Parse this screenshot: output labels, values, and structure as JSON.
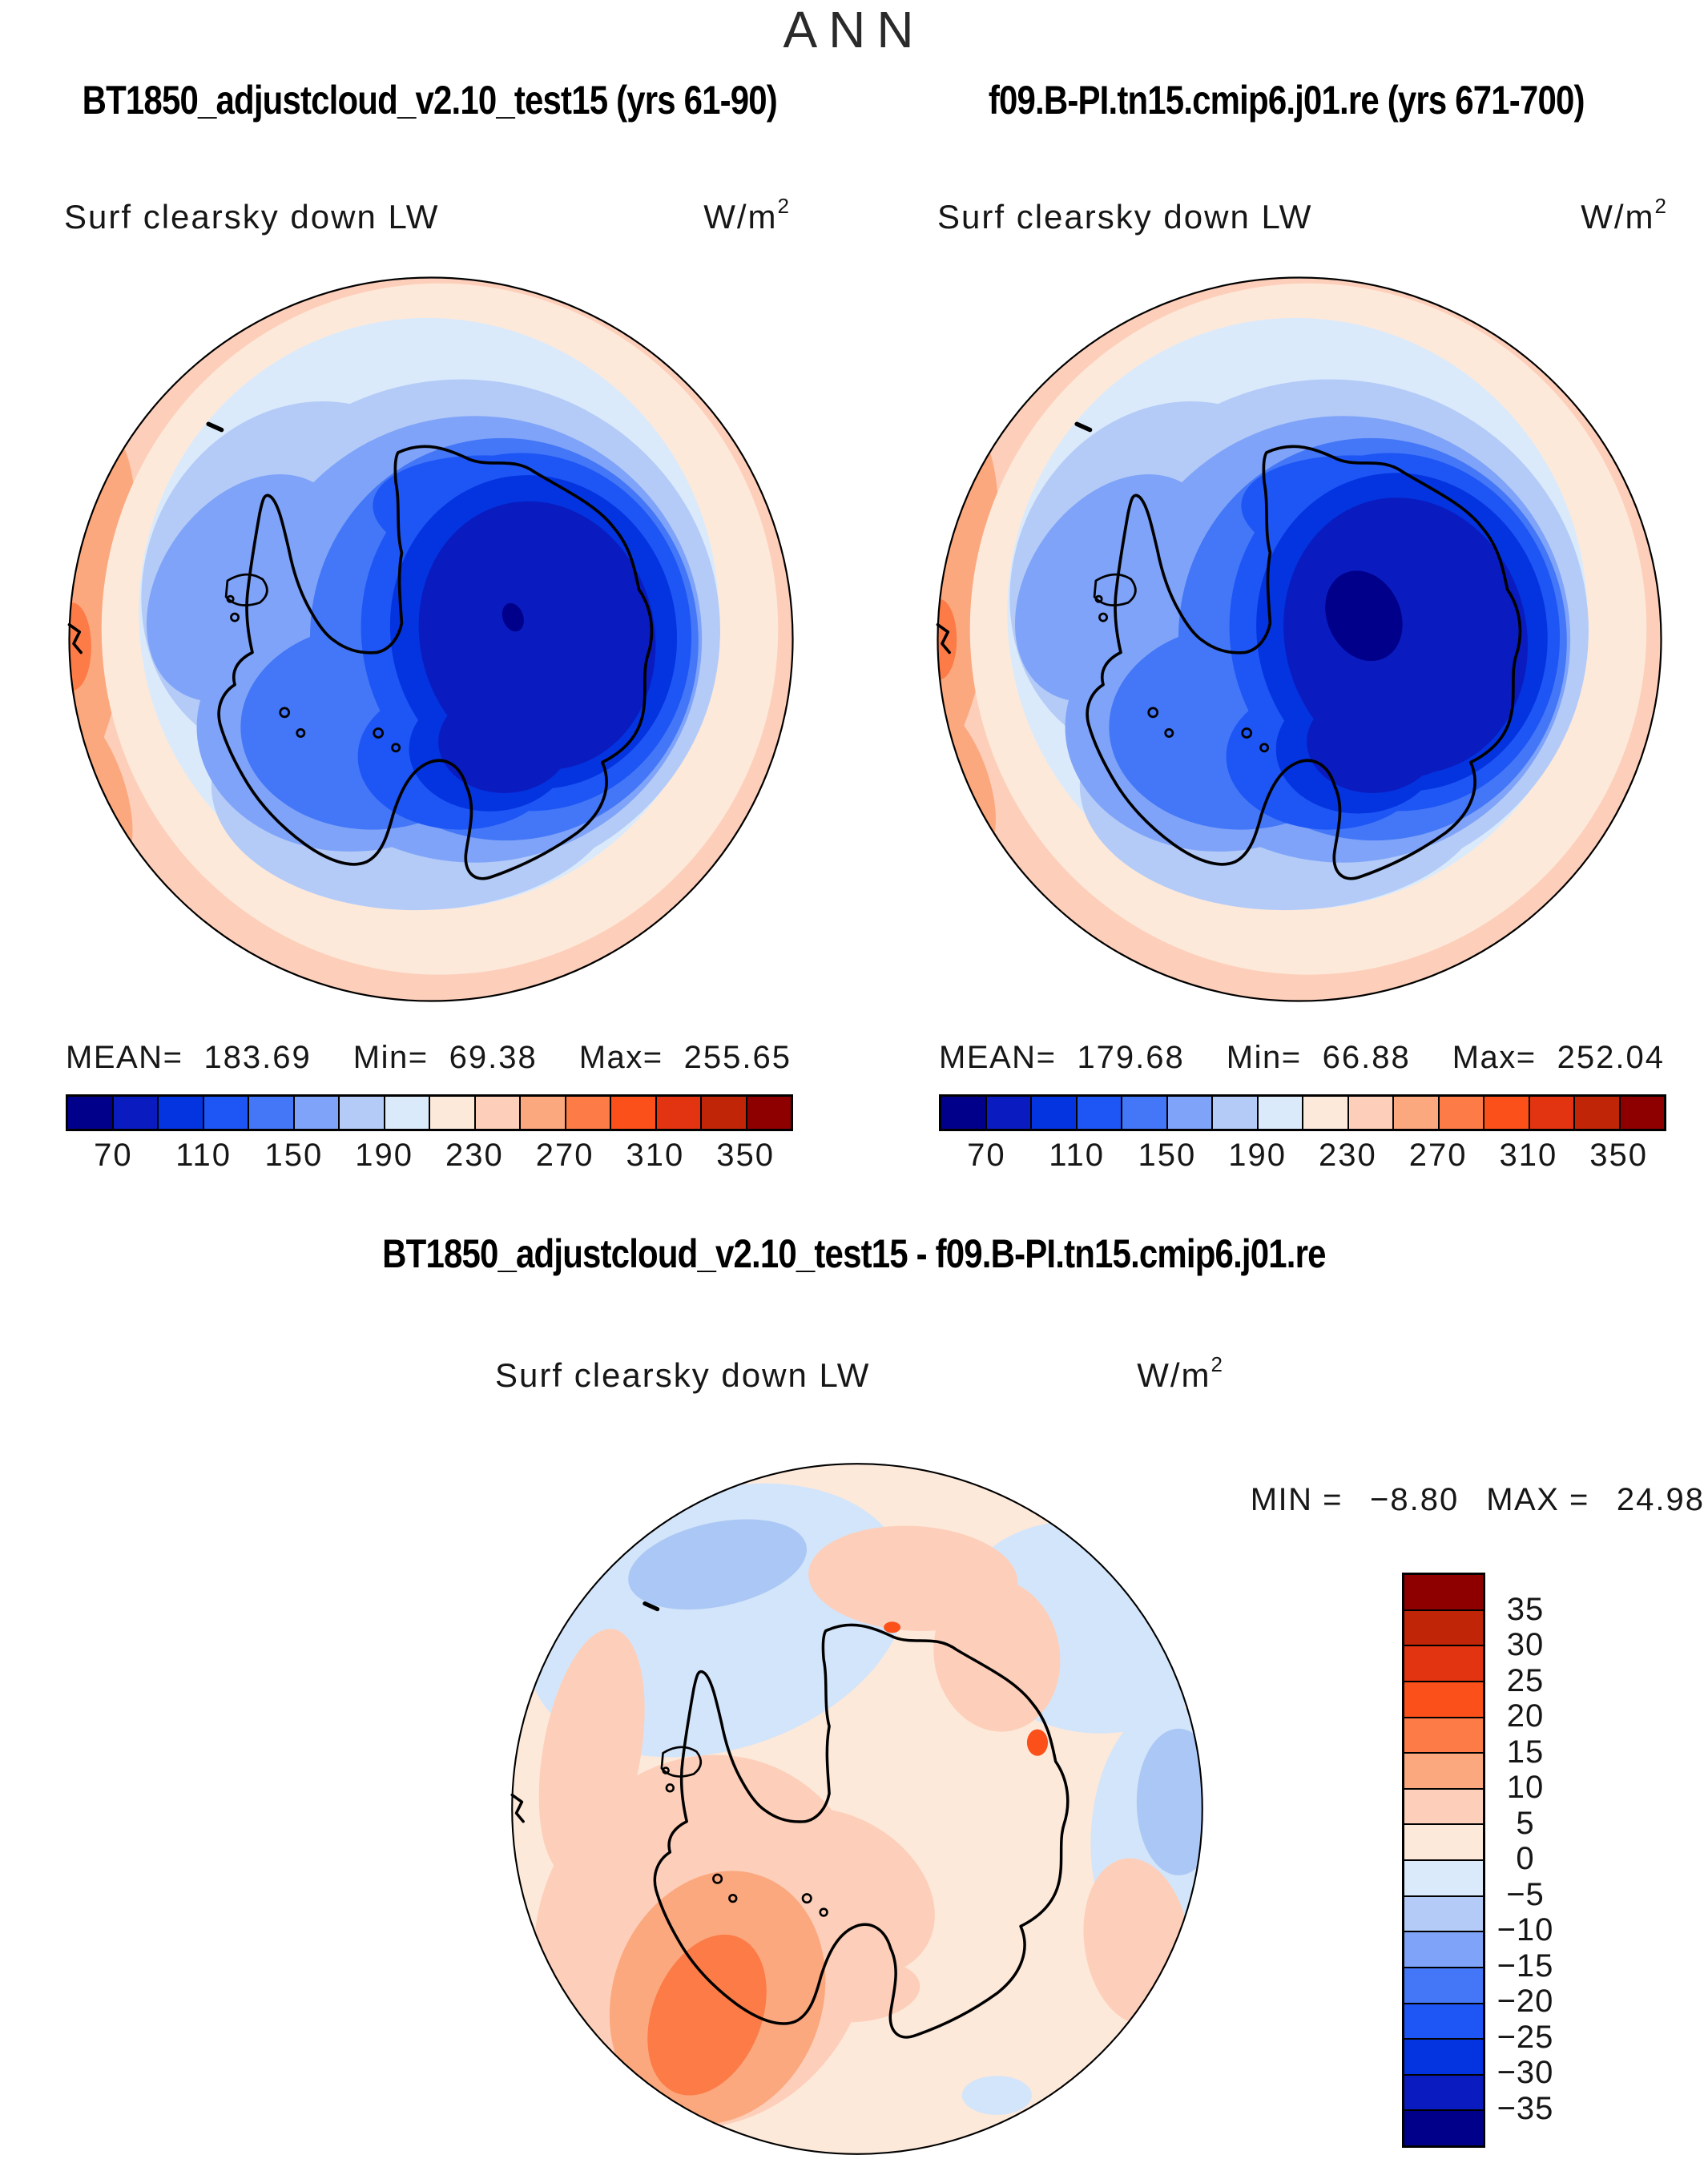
{
  "page": {
    "title": "ANN",
    "background": "#ffffff"
  },
  "palette": [
    "#00008B",
    "#0A1CC0",
    "#0334E0",
    "#1E55F5",
    "#4377F7",
    "#7FA3F8",
    "#B4CBF7",
    "#DAEAFB",
    "#FDE9DA",
    "#FDCFBA",
    "#FCA87E",
    "#FC7B47",
    "#FB501A",
    "#E23410",
    "#C02508",
    "#8E0000"
  ],
  "panels": [
    {
      "title": "BT1850_adjustcloud_v2.10_test15 (yrs 61-90)",
      "subtitle": "Surf clearsky down LW",
      "units_base": "W/m",
      "units_exp": "2",
      "stats": {
        "mean_label": "MEAN=",
        "mean": "183.69",
        "min_label": "Min=",
        "min": "69.38",
        "max_label": "Max=",
        "max": "255.65"
      },
      "colorbar": {
        "ticks": [
          "70",
          "110",
          "150",
          "190",
          "230",
          "270",
          "310",
          "350"
        ]
      }
    },
    {
      "title": "f09.B-PI.tn15.cmip6.j01.re (yrs 671-700)",
      "subtitle": "Surf clearsky down LW",
      "units_base": "W/m",
      "units_exp": "2",
      "stats": {
        "mean_label": "MEAN=",
        "mean": "179.68",
        "min_label": "Min=",
        "min": "66.88",
        "max_label": "Max=",
        "max": "252.04"
      },
      "colorbar": {
        "ticks": [
          "70",
          "110",
          "150",
          "190",
          "230",
          "270",
          "310",
          "350"
        ]
      }
    }
  ],
  "diff": {
    "title": "BT1850_adjustcloud_v2.10_test15 - f09.B-PI.tn15.cmip6.j01.re",
    "subtitle": "Surf clearsky down LW",
    "units_base": "W/m",
    "units_exp": "2",
    "minmax": {
      "min_label": "MIN =",
      "min": "−8.80",
      "max_label": "MAX =",
      "max": "24.98"
    },
    "colorbar": {
      "labels": [
        "35",
        "30",
        "25",
        "20",
        "15",
        "10",
        "5",
        "0",
        "−5",
        "−10",
        "−15",
        "−20",
        "−25",
        "−30",
        "−35"
      ]
    }
  },
  "chart_data": [
    {
      "type": "heatmap",
      "subtype": "filled-contour-map",
      "projection": "south-polar-stereographic",
      "title": "BT1850_adjustcloud_v2.10_test15 (yrs 61-90)",
      "variable": "Surf clearsky down LW",
      "units": "W/m^2",
      "season": "ANN",
      "stats": {
        "mean": 183.69,
        "min": 69.38,
        "max": 255.65
      },
      "contour_levels": [
        50,
        70,
        90,
        110,
        130,
        150,
        170,
        190,
        210,
        230,
        250,
        270,
        290,
        310,
        330,
        350,
        370
      ],
      "tick_labels": [
        70,
        110,
        150,
        190,
        230,
        270,
        310,
        350
      ],
      "palette_low_to_high": [
        "#00008B",
        "#0A1CC0",
        "#0334E0",
        "#1E55F5",
        "#4377F7",
        "#7FA3F8",
        "#B4CBF7",
        "#DAEAFB",
        "#FDE9DA",
        "#FDCFBA",
        "#FCA87E",
        "#FC7B47",
        "#FB501A",
        "#E23410",
        "#C02508",
        "#8E0000"
      ],
      "legend_position": "bottom",
      "pattern": "minimum over East Antarctic plateau (dark blue), values increase outward to warm ocean ring (orange) at map edge"
    },
    {
      "type": "heatmap",
      "subtype": "filled-contour-map",
      "projection": "south-polar-stereographic",
      "title": "f09.B-PI.tn15.cmip6.j01.re (yrs 671-700)",
      "variable": "Surf clearsky down LW",
      "units": "W/m^2",
      "season": "ANN",
      "stats": {
        "mean": 179.68,
        "min": 66.88,
        "max": 252.04
      },
      "contour_levels": [
        50,
        70,
        90,
        110,
        130,
        150,
        170,
        190,
        210,
        230,
        250,
        270,
        290,
        310,
        330,
        350,
        370
      ],
      "tick_labels": [
        70,
        110,
        150,
        190,
        230,
        270,
        310,
        350
      ],
      "palette_low_to_high": [
        "#00008B",
        "#0A1CC0",
        "#0334E0",
        "#1E55F5",
        "#4377F7",
        "#7FA3F8",
        "#B4CBF7",
        "#DAEAFB",
        "#FDE9DA",
        "#FDCFBA",
        "#FCA87E",
        "#FC7B47",
        "#FB501A",
        "#E23410",
        "#C02508",
        "#8E0000"
      ],
      "legend_position": "bottom",
      "pattern": "same spatial pattern as first panel with slightly larger dark-blue core over the plateau"
    },
    {
      "type": "heatmap",
      "subtype": "filled-contour-map-difference",
      "projection": "south-polar-stereographic",
      "title": "BT1850_adjustcloud_v2.10_test15 - f09.B-PI.tn15.cmip6.j01.re",
      "variable": "Surf clearsky down LW",
      "units": "W/m^2",
      "season": "ANN",
      "stats": {
        "min": -8.8,
        "max": 24.98
      },
      "contour_levels": [
        -35,
        -30,
        -25,
        -20,
        -15,
        -10,
        -5,
        0,
        5,
        10,
        15,
        20,
        25,
        30,
        35
      ],
      "label_values": [
        35,
        30,
        25,
        20,
        15,
        10,
        5,
        0,
        -5,
        -10,
        -15,
        -20,
        -25,
        -30,
        -35
      ],
      "palette_low_to_high": [
        "#00008B",
        "#0A1CC0",
        "#0334E0",
        "#1E55F5",
        "#4377F7",
        "#7FA3F8",
        "#B4CBF7",
        "#DAEAFB",
        "#FDE9DA",
        "#FDCFBA",
        "#FCA87E",
        "#FC7B47",
        "#FB501A",
        "#E23410",
        "#C02508",
        "#8E0000"
      ],
      "legend_position": "right",
      "pattern": "mostly weak positive differences (0-5) over continent; 5-15 over southwest ocean with 15-20 core; small negative (0 to -10) patches over northwest and northeast ocean"
    }
  ]
}
